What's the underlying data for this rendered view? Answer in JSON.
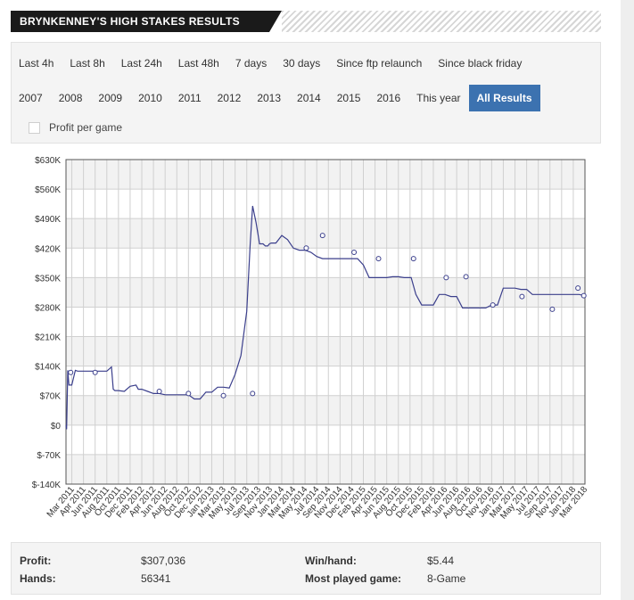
{
  "header": {
    "title": "BRYNKENNEY'S HIGH STAKES RESULTS"
  },
  "tabs_row1": [
    "Last 4h",
    "Last 8h",
    "Last 24h",
    "Last 48h",
    "7 days",
    "30 days",
    "Since ftp relaunch",
    "Since black friday"
  ],
  "tabs_row2": [
    "2007",
    "2008",
    "2009",
    "2010",
    "2011",
    "2012",
    "2013",
    "2014",
    "2015",
    "2016",
    "This year",
    "All Results"
  ],
  "active_tab": "All Results",
  "profit_per_game_label": "Profit per game",
  "stats": {
    "profit_label": "Profit:",
    "profit_value": "$307,036",
    "hands_label": "Hands:",
    "hands_value": "56341",
    "winhand_label": "Win/hand:",
    "winhand_value": "$5.44",
    "mostplayed_label": "Most played game:",
    "mostplayed_value": "8-Game"
  },
  "colors": {
    "line": "#3b3f8c",
    "accent": "#3c72b0",
    "band": "#f2f2f2",
    "grid": "#d0d0d0"
  },
  "chart_data": {
    "type": "line",
    "title": "",
    "xlabel": "",
    "ylabel": "",
    "ylim": [
      -140000,
      630000
    ],
    "y_ticks": [
      -140000,
      -70000,
      0,
      70000,
      140000,
      210000,
      280000,
      350000,
      420000,
      490000,
      560000,
      630000
    ],
    "y_tick_labels": [
      "$-140K",
      "$-70K",
      "$0",
      "$70K",
      "$140K",
      "$210K",
      "$280K",
      "$350K",
      "$420K",
      "$490K",
      "$560K",
      "$630K"
    ],
    "x_tick_labels": [
      "Mar 2011",
      "Apr 2011",
      "Jun 2011",
      "Aug 2011",
      "Oct 2011",
      "Dec 2011",
      "Feb 2012",
      "Apr 2012",
      "Jun 2012",
      "Aug 2012",
      "Oct 2012",
      "Dec 2012",
      "Jan 2013",
      "Mar 2013",
      "May 2013",
      "Jul 2013",
      "Sep 2013",
      "Nov 2013",
      "Jan 2014",
      "Mar 2014",
      "May 2014",
      "Jul 2014",
      "Sep 2014",
      "Nov 2014",
      "Dec 2014",
      "Feb 2015",
      "Apr 2015",
      "Jun 2015",
      "Aug 2015",
      "Oct 2015",
      "Dec 2015",
      "Feb 2016",
      "Apr 2016",
      "Jun 2016",
      "Aug 2016",
      "Oct 2016",
      "Nov 2016",
      "Jan 2017",
      "Mar 2017",
      "May 2017",
      "Jul 2017",
      "Sep 2017",
      "Nov 2017",
      "Jan 2018",
      "Mar 2018"
    ],
    "x": [
      0,
      0.05,
      0.15,
      0.25,
      0.35,
      0.5,
      0.8,
      1.0,
      1.5,
      2.0,
      2.5,
      3.0,
      3.5,
      3.9,
      4.05,
      4.2,
      4.5,
      5.0,
      5.5,
      6.0,
      6.2,
      6.5,
      7.0,
      7.5,
      8.0,
      8.5,
      9.0,
      9.5,
      10.0,
      10.5,
      11.0,
      11.5,
      12.0,
      12.5,
      13.0,
      13.5,
      14.0,
      14.5,
      15.0,
      15.5,
      15.8,
      16.0,
      16.3,
      16.6,
      16.9,
      17.1,
      17.3,
      17.45,
      17.6,
      17.8,
      18.0,
      18.5,
      19.0,
      19.5,
      20.0,
      20.5,
      21.0,
      21.5,
      22.0,
      22.5,
      23.0,
      23.5,
      24.0,
      24.5,
      25.0,
      25.5,
      26.0,
      26.5,
      27.0,
      27.5,
      28.0,
      28.5,
      29.0,
      29.3,
      29.6,
      30.0,
      30.5,
      31.0,
      31.5,
      32.0,
      32.5,
      33.0,
      33.5,
      34.0,
      34.5,
      35.0,
      35.5,
      36.0,
      36.5,
      37.0,
      37.5,
      38.0,
      38.5,
      39.0,
      39.5,
      40.0,
      40.5,
      41.0,
      41.5,
      42.0,
      42.5,
      43.0,
      43.5,
      44.0,
      44.5
    ],
    "series": [
      {
        "values": [
          0,
          -10000,
          130000,
          95000,
          95000,
          95000,
          130000,
          128000,
          128000,
          128000,
          128000,
          128000,
          128000,
          138000,
          85000,
          82000,
          82000,
          80000,
          92000,
          95000,
          85000,
          85000,
          80000,
          75000,
          75000,
          72000,
          72000,
          72000,
          72000,
          72000,
          62000,
          62000,
          78000,
          78000,
          90000,
          90000,
          88000,
          120000,
          165000,
          270000,
          430000,
          520000,
          480000,
          430000,
          430000,
          425000,
          425000,
          430000,
          432000,
          432000,
          432000,
          450000,
          440000,
          420000,
          415000,
          415000,
          410000,
          400000,
          395000,
          395000,
          395000,
          395000,
          395000,
          395000,
          395000,
          380000,
          350000,
          350000,
          350000,
          350000,
          352000,
          352000,
          350000,
          350000,
          350000,
          310000,
          285000,
          285000,
          285000,
          310000,
          310000,
          305000,
          305000,
          278000,
          278000,
          278000,
          278000,
          278000,
          285000,
          285000,
          325000,
          325000,
          325000,
          322000,
          322000,
          310000,
          310000,
          310000,
          310000,
          310000,
          310000,
          310000,
          310000,
          310000,
          307036
        ]
      }
    ],
    "markers": [
      [
        0.4,
        125000
      ],
      [
        2.5,
        125000
      ],
      [
        8.0,
        80000
      ],
      [
        10.5,
        75000
      ],
      [
        13.5,
        70000
      ],
      [
        16.0,
        75000
      ],
      [
        20.6,
        420000
      ],
      [
        22.0,
        450000
      ],
      [
        24.7,
        410000
      ],
      [
        26.8,
        395000
      ],
      [
        29.8,
        395000
      ],
      [
        32.6,
        350000
      ],
      [
        34.3,
        352000
      ],
      [
        36.6,
        285000
      ],
      [
        39.1,
        305000
      ],
      [
        41.7,
        275000
      ],
      [
        43.9,
        325000
      ],
      [
        44.4,
        307036
      ]
    ],
    "grid": true,
    "legend": "none"
  }
}
